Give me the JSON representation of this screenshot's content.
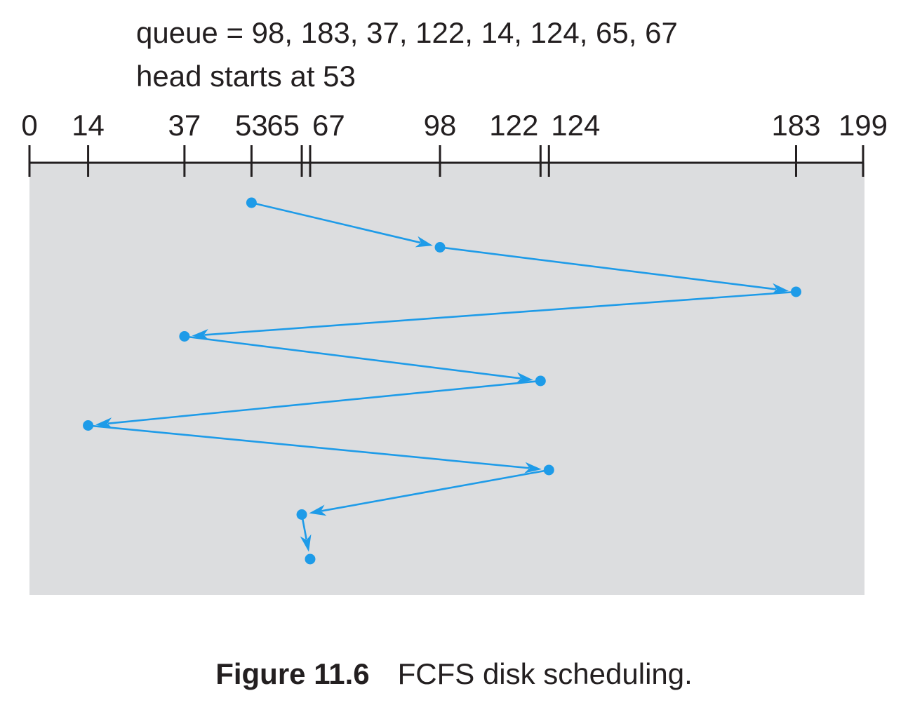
{
  "header": {
    "queue_text": "queue = 98, 183, 37, 122, 14, 124, 65, 67",
    "head_text": "head starts at 53"
  },
  "axis": {
    "min": 0,
    "max": 199,
    "ticks": [
      0,
      14,
      37,
      53,
      65,
      67,
      98,
      122,
      124,
      183,
      199
    ]
  },
  "schedule": {
    "head_start": 53,
    "queue": [
      98,
      183,
      37,
      122,
      14,
      124,
      65,
      67
    ]
  },
  "colors": {
    "path": "#1e9be8",
    "panel": "#dcdddf",
    "axis": "#231f20"
  },
  "caption": {
    "figure_number": "Figure 11.6",
    "title": "FCFS disk scheduling."
  }
}
